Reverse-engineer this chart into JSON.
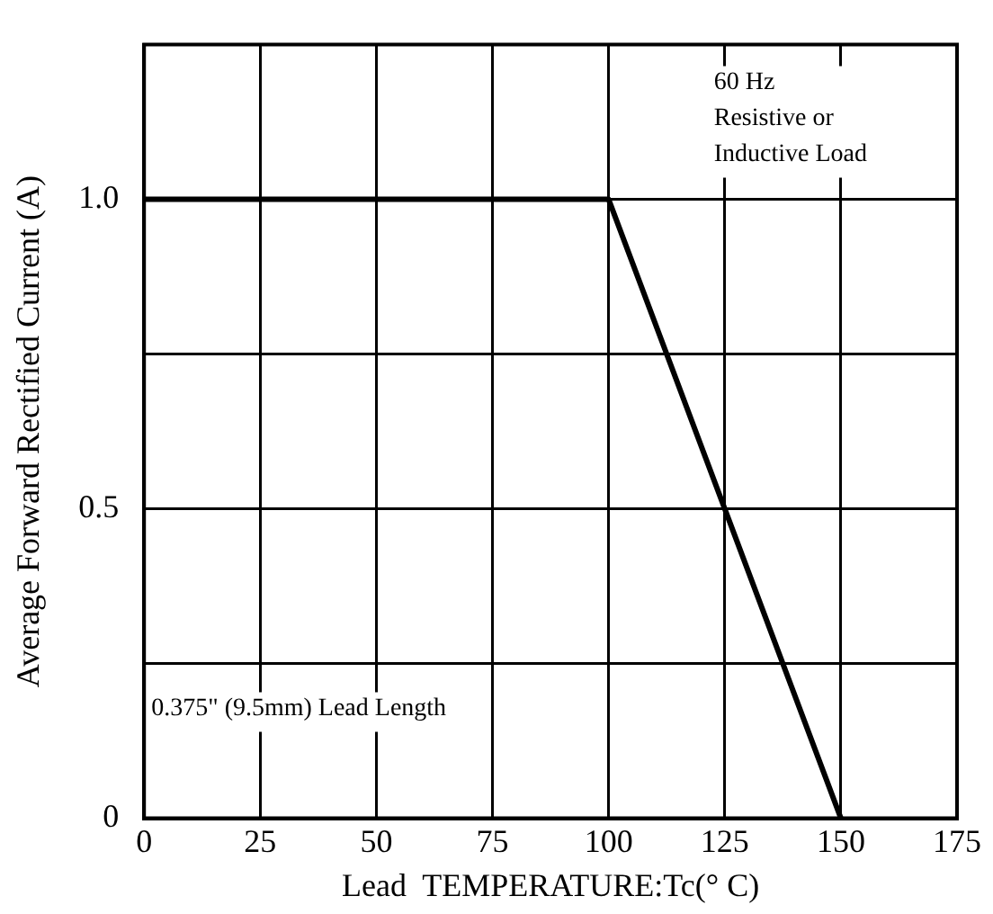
{
  "chart_data": {
    "type": "line",
    "xlabel": "Lead  TEMPERATURE:Tc(° C)",
    "ylabel": "Average Forward Rectified Current (A)",
    "x": [
      0,
      100,
      150
    ],
    "series": [
      {
        "color": "#000000",
        "values": [
          1.0,
          1.0,
          0
        ]
      }
    ],
    "xlim": [
      0,
      175
    ],
    "xticks": [
      0,
      25,
      50,
      75,
      100,
      125,
      150,
      175
    ],
    "ylim": [
      0,
      1.25
    ],
    "yticks": [
      0,
      {
        "value": 0.25,
        "label": null
      },
      0.5,
      {
        "value": 0.75,
        "label": null
      },
      {
        "value": 1,
        "label": "1.0"
      }
    ],
    "grid": true,
    "legend": false,
    "marker": "none",
    "line_style": "solid",
    "annotations": [
      "60 Hz\nResistive or\nInductive Load",
      "0.375\" (9.5mm) Lead Length"
    ]
  }
}
